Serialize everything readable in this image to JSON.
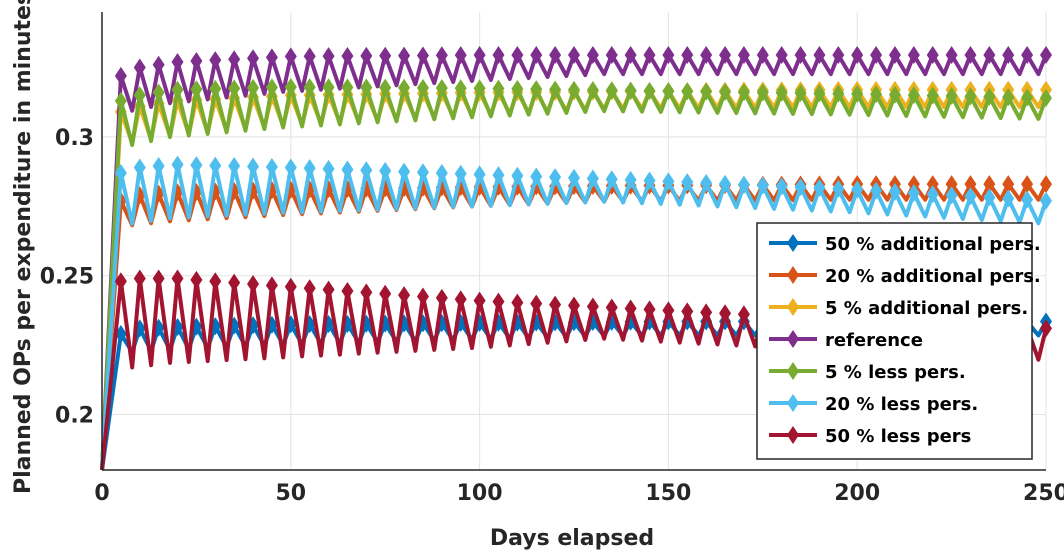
{
  "chart_data": {
    "type": "line",
    "xlabel": "Days elapsed",
    "ylabel": "Planned OPs per expenditure in minutes",
    "xlim": [
      0,
      250
    ],
    "ylim": [
      0.18,
      0.345
    ],
    "x_ticks": [
      "0",
      "50",
      "100",
      "150",
      "200",
      "250"
    ],
    "y_ticks": [
      "0.2",
      "0.25",
      "0.3"
    ],
    "grid": true,
    "legend_position": "right",
    "marker": "diamond",
    "series": [
      {
        "name": "50 % additional pers.",
        "color": "#0072BD",
        "x": [
          0,
          5,
          10,
          20,
          50,
          100,
          150,
          200,
          250
        ],
        "y": [
          0.18,
          0.229,
          0.231,
          0.2315,
          0.2325,
          0.233,
          0.2335,
          0.2335,
          0.2335
        ]
      },
      {
        "name": "20 % additional pers.",
        "color": "#D95319",
        "x": [
          0,
          5,
          10,
          20,
          50,
          100,
          150,
          200,
          250
        ],
        "y": [
          0.18,
          0.277,
          0.279,
          0.28,
          0.281,
          0.282,
          0.2825,
          0.283,
          0.283
        ]
      },
      {
        "name": "5 % additional pers.",
        "color": "#EDB120",
        "x": [
          0,
          5,
          10,
          20,
          50,
          100,
          150,
          200,
          250
        ],
        "y": [
          0.18,
          0.309,
          0.311,
          0.313,
          0.315,
          0.316,
          0.3165,
          0.317,
          0.317
        ]
      },
      {
        "name": "reference",
        "color": "#7E2F8E",
        "x": [
          0,
          5,
          10,
          20,
          50,
          100,
          150,
          200,
          250
        ],
        "y": [
          0.18,
          0.322,
          0.325,
          0.327,
          0.329,
          0.3295,
          0.3295,
          0.3295,
          0.3295
        ]
      },
      {
        "name": "5 % less pers.",
        "color": "#77AC30",
        "x": [
          0,
          5,
          10,
          20,
          50,
          100,
          150,
          200,
          250
        ],
        "y": [
          0.18,
          0.313,
          0.315,
          0.317,
          0.318,
          0.3175,
          0.3165,
          0.3155,
          0.314
        ]
      },
      {
        "name": "20 % less pers.",
        "color": "#4DBEEE",
        "x": [
          0,
          5,
          10,
          20,
          50,
          100,
          150,
          200,
          250
        ],
        "y": [
          0.18,
          0.287,
          0.289,
          0.29,
          0.289,
          0.2865,
          0.284,
          0.281,
          0.277
        ]
      },
      {
        "name": "50 % less pers",
        "color": "#A2142F",
        "x": [
          0,
          5,
          10,
          20,
          50,
          100,
          150,
          200,
          250
        ],
        "y": [
          0.18,
          0.248,
          0.249,
          0.249,
          0.246,
          0.241,
          0.2375,
          0.234,
          0.231
        ]
      }
    ]
  }
}
